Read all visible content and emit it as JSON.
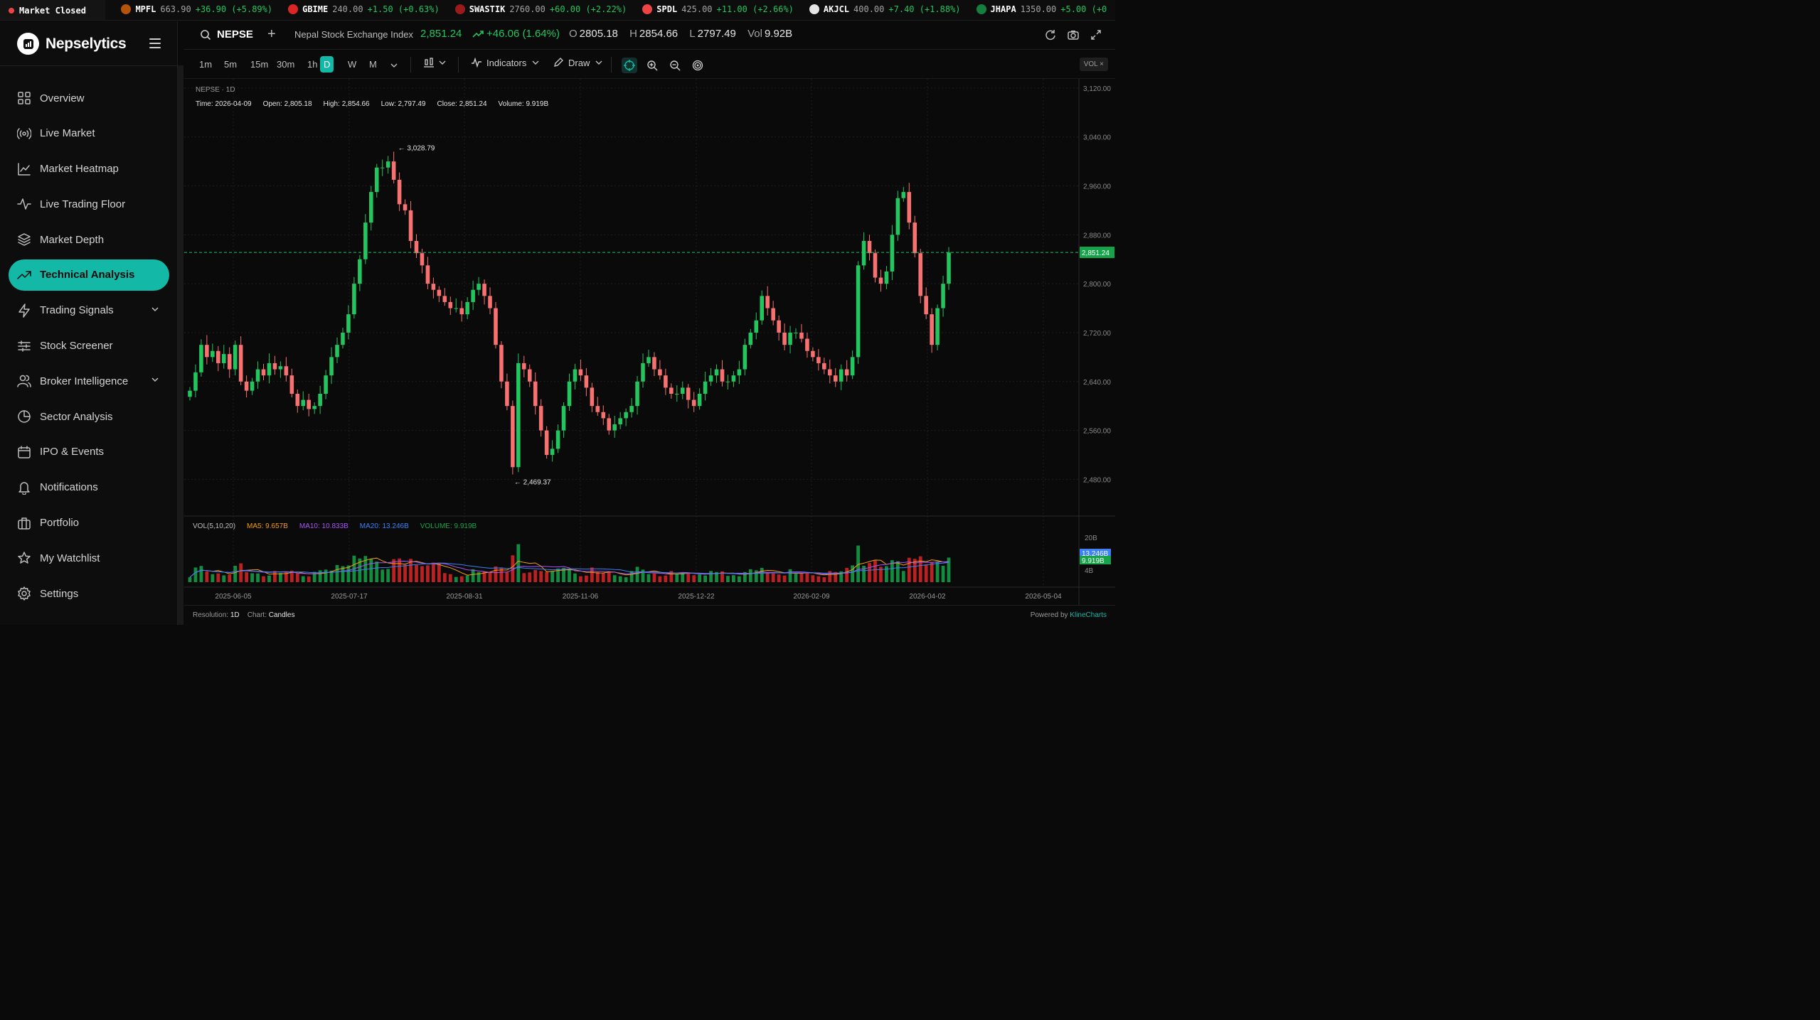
{
  "ticker": {
    "status": "Market Closed",
    "lead_fragment": "%)",
    "items": [
      {
        "symbol": "MPFL",
        "price": "663.90",
        "change": "+36.90 (+5.89%)",
        "logo_color": "#b45309"
      },
      {
        "symbol": "GBIME",
        "price": "240.00",
        "change": "+1.50 (+0.63%)",
        "logo_color": "#dc2626"
      },
      {
        "symbol": "SWASTIK",
        "price": "2760.00",
        "change": "+60.00 (+2.22%)",
        "logo_color": "#991b1b"
      },
      {
        "symbol": "SPDL",
        "price": "425.00",
        "change": "+11.00 (+2.66%)",
        "logo_color": "#ef4444"
      },
      {
        "symbol": "AKJCL",
        "price": "400.00",
        "change": "+7.40 (+1.88%)",
        "logo_color": "#e5e5e5"
      },
      {
        "symbol": "JHAPA",
        "price": "1350.00",
        "change": "+5.00 (+0",
        "logo_color": "#15803d"
      }
    ]
  },
  "sidebar": {
    "brand": "Nepselytics",
    "items": [
      {
        "label": "Overview",
        "icon": "grid-icon"
      },
      {
        "label": "Live Market",
        "icon": "broadcast-icon"
      },
      {
        "label": "Market Heatmap",
        "icon": "area-chart-icon"
      },
      {
        "label": "Live Trading Floor",
        "icon": "pulse-icon"
      },
      {
        "label": "Market Depth",
        "icon": "layers-icon"
      },
      {
        "label": "Technical Analysis",
        "icon": "trending-up-icon",
        "active": true
      },
      {
        "label": "Trading Signals",
        "icon": "lightning-icon",
        "expandable": true
      },
      {
        "label": "Stock Screener",
        "icon": "sliders-icon"
      },
      {
        "label": "Broker Intelligence",
        "icon": "users-icon",
        "expandable": true
      },
      {
        "label": "Sector Analysis",
        "icon": "pie-chart-icon"
      },
      {
        "label": "IPO & Events",
        "icon": "calendar-icon"
      },
      {
        "label": "Notifications",
        "icon": "bell-icon"
      },
      {
        "label": "Portfolio",
        "icon": "briefcase-icon"
      },
      {
        "label": "My Watchlist",
        "icon": "star-icon"
      },
      {
        "label": "Settings",
        "icon": "gear-icon"
      }
    ]
  },
  "header": {
    "symbol": "NEPSE",
    "add": "+",
    "name": "Nepal Stock Exchange Index",
    "price": "2,851.24",
    "change": "+46.06 (1.64%)",
    "open_label": "O",
    "open": "2805.18",
    "high_label": "H",
    "high": "2854.66",
    "low_label": "L",
    "low": "2797.49",
    "vol_label": "Vol",
    "vol": "9.92B"
  },
  "toolbar": {
    "timeframes": [
      "1m",
      "5m",
      "15m",
      "30m",
      "1h",
      "D",
      "W",
      "M"
    ],
    "active_timeframe": "D",
    "indicators": "Indicators",
    "draw": "Draw",
    "vol_tag": "VOL ×"
  },
  "chart": {
    "symbol_line": "NEPSE · 1D",
    "ohlc": {
      "time_label": "Time:",
      "time": "2026-04-09",
      "open_label": "Open:",
      "open": "2,805.18",
      "high_label": "High:",
      "high": "2,854.66",
      "low_label": "Low:",
      "low": "2,797.49",
      "close_label": "Close:",
      "close": "2,851.24",
      "volume_label": "Volume:",
      "volume": "9.919B"
    },
    "vol_legend": {
      "title": "VOL(5,10,20)",
      "ma5": "MA5: 9.657B",
      "ma10": "MA10: 10.833B",
      "ma20": "MA20: 13.246B",
      "volume": "VOLUME: 9.919B"
    },
    "footer_left_label": "Resolution:",
    "footer_left_value": "1D",
    "footer_mid_label": "Chart:",
    "footer_mid_value": "Candles",
    "footer_right_label": "Powered by",
    "footer_right_value": "KlineCharts"
  },
  "chart_data": {
    "type": "candlestick",
    "y_ticks": [
      "3,120.00",
      "3,040.00",
      "2,960.00",
      "2,880.00",
      "2,800.00",
      "2,720.00",
      "2,640.00",
      "2,560.00",
      "2,480.00"
    ],
    "ylim": [
      2420,
      3135
    ],
    "x_ticks": [
      "2025-06-05",
      "2025-07-17",
      "2025-08-31",
      "2025-11-06",
      "2025-12-22",
      "2026-02-09",
      "2026-04-02",
      "2026-05-04"
    ],
    "last_price": 2851.24,
    "last_price_label": "2,851.24",
    "max_label": "3,028.79",
    "min_label": "2,469.37",
    "volume_axis": [
      "20B",
      "4B"
    ],
    "volume_tags": [
      "13.246B",
      "9.919B"
    ],
    "closes": [
      2625,
      2655,
      2700,
      2680,
      2690,
      2670,
      2685,
      2660,
      2700,
      2640,
      2625,
      2640,
      2660,
      2650,
      2670,
      2660,
      2665,
      2650,
      2620,
      2600,
      2610,
      2595,
      2600,
      2620,
      2650,
      2680,
      2700,
      2720,
      2750,
      2800,
      2840,
      2900,
      2950,
      2990,
      2990,
      3000,
      2970,
      2930,
      2920,
      2870,
      2850,
      2830,
      2800,
      2790,
      2780,
      2770,
      2760,
      2760,
      2750,
      2770,
      2790,
      2800,
      2780,
      2760,
      2700,
      2640,
      2600,
      2500,
      2670,
      2660,
      2640,
      2600,
      2560,
      2520,
      2530,
      2560,
      2600,
      2640,
      2660,
      2650,
      2630,
      2600,
      2590,
      2580,
      2560,
      2570,
      2580,
      2590,
      2600,
      2640,
      2670,
      2680,
      2660,
      2650,
      2630,
      2620,
      2620,
      2630,
      2610,
      2600,
      2620,
      2640,
      2650,
      2660,
      2640,
      2640,
      2650,
      2660,
      2700,
      2720,
      2740,
      2780,
      2760,
      2740,
      2720,
      2700,
      2720,
      2720,
      2710,
      2690,
      2680,
      2670,
      2660,
      2650,
      2640,
      2660,
      2650,
      2680,
      2830,
      2870,
      2850,
      2810,
      2800,
      2820,
      2880,
      2940,
      2950,
      2900,
      2850,
      2780,
      2750,
      2700,
      2760,
      2800,
      2851
    ]
  }
}
